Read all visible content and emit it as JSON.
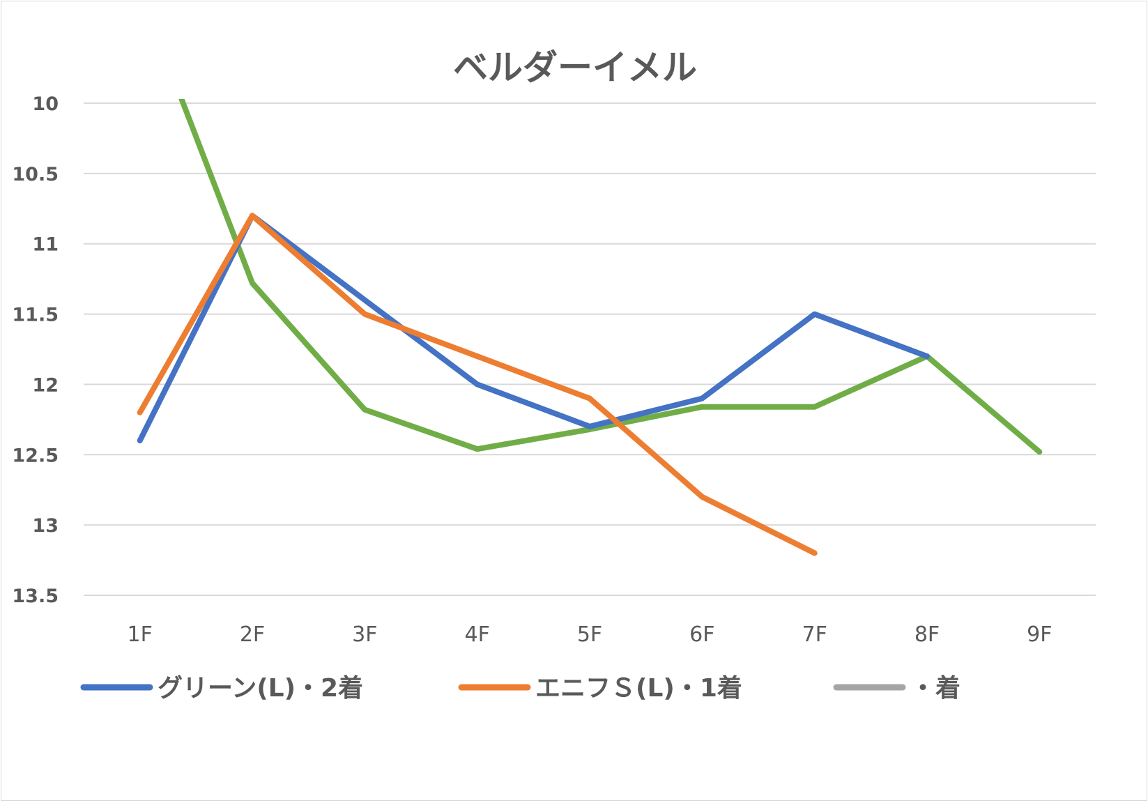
{
  "chart_data": {
    "type": "line",
    "title": "ベルダーイメル",
    "xlabel": "",
    "ylabel": "",
    "categories": [
      "1F",
      "2F",
      "3F",
      "4F",
      "5F",
      "6F",
      "7F",
      "8F",
      "9F"
    ],
    "ylim": [
      10,
      13.5
    ],
    "y_reversed": true,
    "y_ticks": [
      "10",
      "10.5",
      "11",
      "11.5",
      "12",
      "12.5",
      "13",
      "13.5"
    ],
    "grid": true,
    "legend_position": "bottom",
    "series": [
      {
        "name": "グリーン(L)・2着",
        "color": "#4472c4",
        "values": [
          12.4,
          10.8,
          11.4,
          12.0,
          12.3,
          12.1,
          11.5,
          11.8,
          null
        ]
      },
      {
        "name": "エニフＳ(L)・1着",
        "color": "#ed7d31",
        "values": [
          12.2,
          10.8,
          11.5,
          11.8,
          12.1,
          12.8,
          13.2,
          null,
          null
        ]
      },
      {
        "name": "・着",
        "color": "#a5a5a5",
        "values": [
          null,
          null,
          null,
          null,
          null,
          null,
          null,
          null,
          null
        ]
      },
      {
        "name": "",
        "color": "#70ad47",
        "values": [
          9.2,
          11.28,
          12.18,
          12.46,
          12.32,
          12.16,
          12.16,
          11.8,
          12.48
        ]
      }
    ]
  }
}
